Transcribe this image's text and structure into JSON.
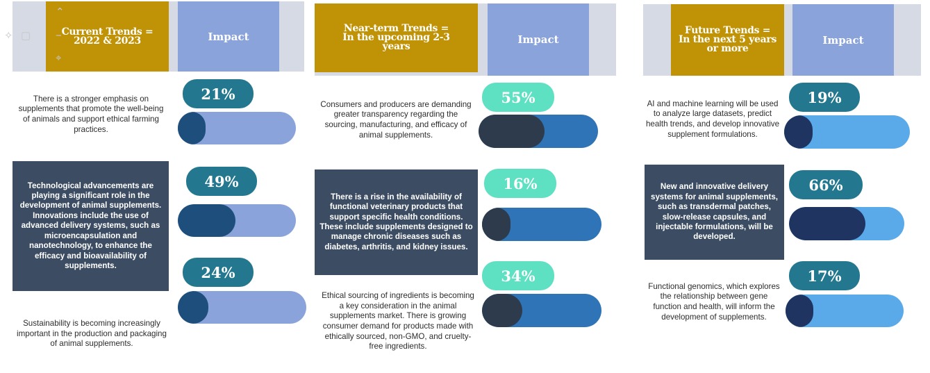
{
  "columns": [
    {
      "header": "Current Trends =\n2022 & 2023",
      "impact_label": "Impact",
      "items": [
        {
          "text": "There is a stronger emphasis on supplements that promote the well-being of animals and support ethical farming practices.",
          "percent_label": "21%",
          "value": 0.21
        },
        {
          "text": "Technological advancements are playing a significant role in the development of animal supplements. Innovations include the use of advanced delivery systems, such as microencapsulation and nanotechnology, to enhance the efficacy and bioavailability of supplements.",
          "percent_label": "49%",
          "value": 0.49
        },
        {
          "text": "Sustainability is becoming increasingly important in the production and packaging of animal supplements.",
          "percent_label": "24%",
          "value": 0.24
        }
      ]
    },
    {
      "header": "Near-term Trends =\nIn the upcoming 2-3\nyears",
      "impact_label": "Impact",
      "items": [
        {
          "text": "Consumers and producers are demanding greater transparency regarding the sourcing, manufacturing, and efficacy of animal supplements.",
          "percent_label": "55%",
          "value": 0.55
        },
        {
          "text": "There is a rise in the availability of functional veterinary products that support specific health conditions. These include supplements designed to manage chronic diseases such as diabetes, arthritis, and kidney issues.",
          "percent_label": "16%",
          "value": 0.16
        },
        {
          "text": "Ethical sourcing of ingredients is becoming a key consideration in the animal supplements market. There is growing consumer demand for products made with ethically sourced, non-GMO, and cruelty-free ingredients.",
          "percent_label": "34%",
          "value": 0.34
        }
      ]
    },
    {
      "header": "Future Trends =\nIn the next 5 years\nor more",
      "impact_label": "Impact",
      "items": [
        {
          "text": "AI and machine learning will be used to analyze large datasets, predict health trends, and develop innovative supplement formulations.",
          "percent_label": "19%",
          "value": 0.19
        },
        {
          "text": "New and innovative delivery systems for animal supplements, such as transdermal patches, slow-release capsules, and injectable formulations, will be developed.",
          "percent_label": "66%",
          "value": 0.66
        },
        {
          "text": "Functional genomics, which explores the relationship between gene function and health, will inform the development of supplements.",
          "percent_label": "17%",
          "value": 0.17
        }
      ]
    }
  ],
  "toolbar": {
    "icons": [
      "magic-wand-icon",
      "crop-icon",
      "chevron-up-icon",
      "minus-icon",
      "pin-icon"
    ]
  },
  "colors": {
    "header_gold": "#c09306",
    "impact_header": "#8aa3da",
    "header_backdrop": "#d5dae4",
    "dark_text_box": "#3c4d63",
    "pill_col1": "#23788f",
    "track_col1": "#8aa3da",
    "fill_col1": "#1e4f7c",
    "pill_col2": "#5ee0c2",
    "track_col2": "#2e74b6",
    "fill_col2": "#2d3b4c",
    "pill_col3": "#23788f",
    "track_col3": "#5aaaea",
    "fill_col3": "#1f3460"
  }
}
